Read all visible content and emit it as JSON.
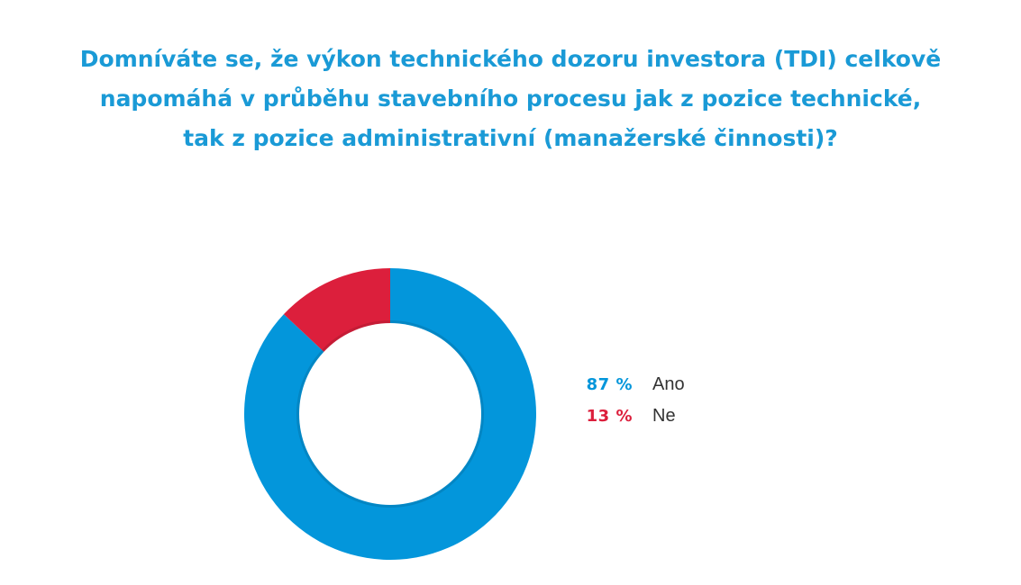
{
  "chart_data": {
    "type": "pie",
    "title_lines": [
      "Domníváte se, že výkon technického dozoru investora (TDI) celkově",
      "napomáhá v průběhu stavebního procesu jak z pozice technické,",
      "tak z pozice administrativní (manažerské činnosti)?"
    ],
    "categories": [
      "Ano",
      "Ne"
    ],
    "values": [
      87,
      13
    ],
    "value_labels": [
      "87 %",
      "13 %"
    ],
    "colors": [
      "#0396db",
      "#dc1f3c"
    ],
    "donut": true,
    "legend": "right"
  }
}
